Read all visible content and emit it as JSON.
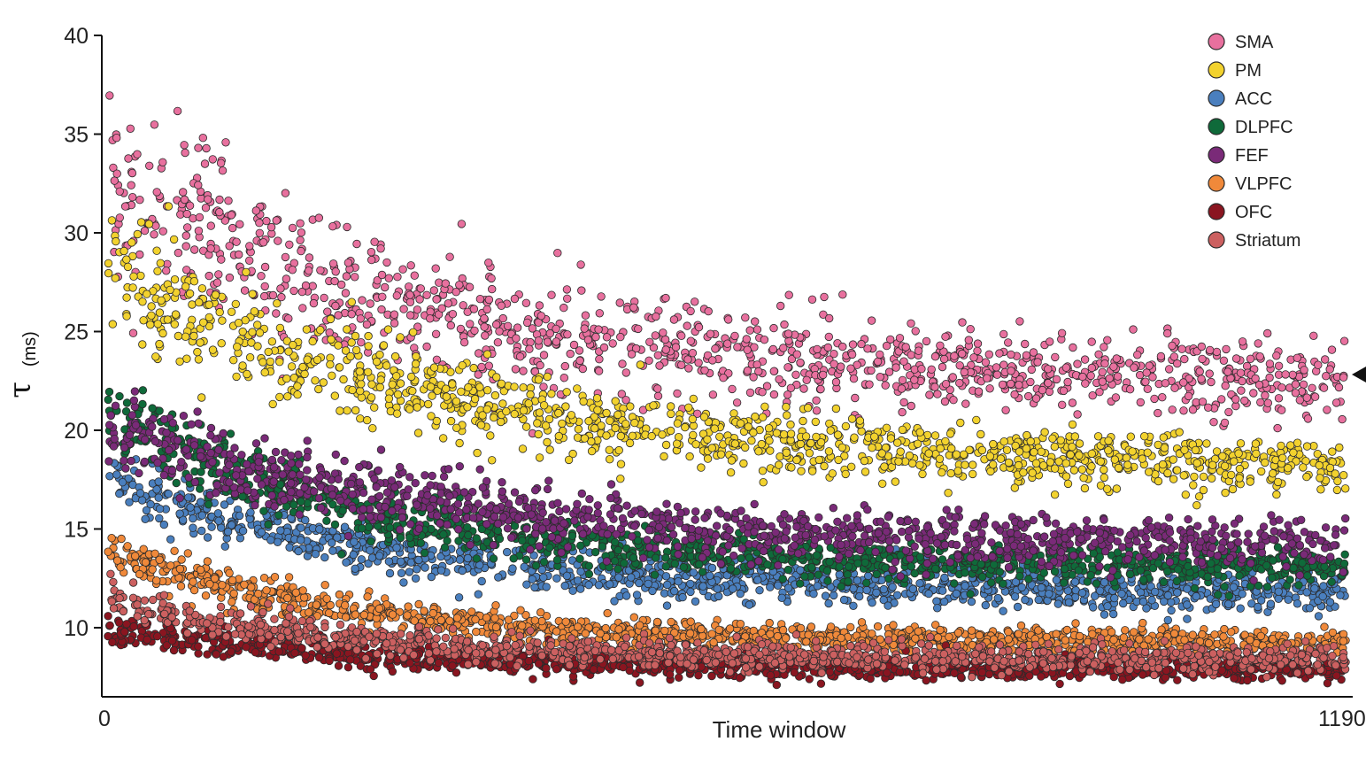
{
  "chart_data": {
    "type": "scatter",
    "xlabel": "Time window",
    "ylabel_symbol": "τ",
    "ylabel_unit": "(ms)",
    "xlim": [
      0,
      1190
    ],
    "ylim": [
      6.5,
      40
    ],
    "xticks": [
      0,
      1190
    ],
    "yticks": [
      10,
      15,
      20,
      25,
      30,
      35,
      40
    ],
    "legend_position": "top-right",
    "grid": false,
    "marker": "circle",
    "series": [
      {
        "name": "SMA",
        "color": "#e8709e",
        "points_per_window_step": 4,
        "trend": {
          "start": 32.5,
          "end": 22.3,
          "tau_decay": 320
        },
        "spread_start": 2.6,
        "spread_end": 0.9
      },
      {
        "name": "PM",
        "color": "#f2d22e",
        "points_per_window_step": 4,
        "trend": {
          "start": 28.0,
          "end": 18.0,
          "tau_decay": 330
        },
        "spread_start": 1.6,
        "spread_end": 0.65
      },
      {
        "name": "ACC",
        "color": "#4a7fbe",
        "points_per_window_step": 4,
        "trend": {
          "start": 17.5,
          "end": 11.8,
          "tau_decay": 260
        },
        "spread_start": 0.75,
        "spread_end": 0.5
      },
      {
        "name": "DLPFC",
        "color": "#0f6a3a",
        "points_per_window_step": 4,
        "trend": {
          "start": 21.0,
          "end": 13.0,
          "tau_decay": 240
        },
        "spread_start": 1.1,
        "spread_end": 0.45
      },
      {
        "name": "FEF",
        "color": "#7a2a78",
        "points_per_window_step": 4,
        "trend": {
          "start": 20.0,
          "end": 14.0,
          "tau_decay": 330
        },
        "spread_start": 1.0,
        "spread_end": 0.6
      },
      {
        "name": "VLPFC",
        "color": "#f0893a",
        "points_per_window_step": 4,
        "trend": {
          "start": 14.0,
          "end": 9.3,
          "tau_decay": 220
        },
        "spread_start": 0.55,
        "spread_end": 0.3
      },
      {
        "name": "OFC",
        "color": "#8a1520",
        "points_per_window_step": 4,
        "trend": {
          "start": 10.0,
          "end": 7.9,
          "tau_decay": 230
        },
        "spread_start": 0.35,
        "spread_end": 0.3
      },
      {
        "name": "Striatum",
        "color": "#cc6060",
        "points_per_window_step": 4,
        "trend": {
          "start": 11.5,
          "end": 8.4,
          "tau_decay": 220
        },
        "spread_start": 0.45,
        "spread_end": 0.32
      }
    ]
  }
}
